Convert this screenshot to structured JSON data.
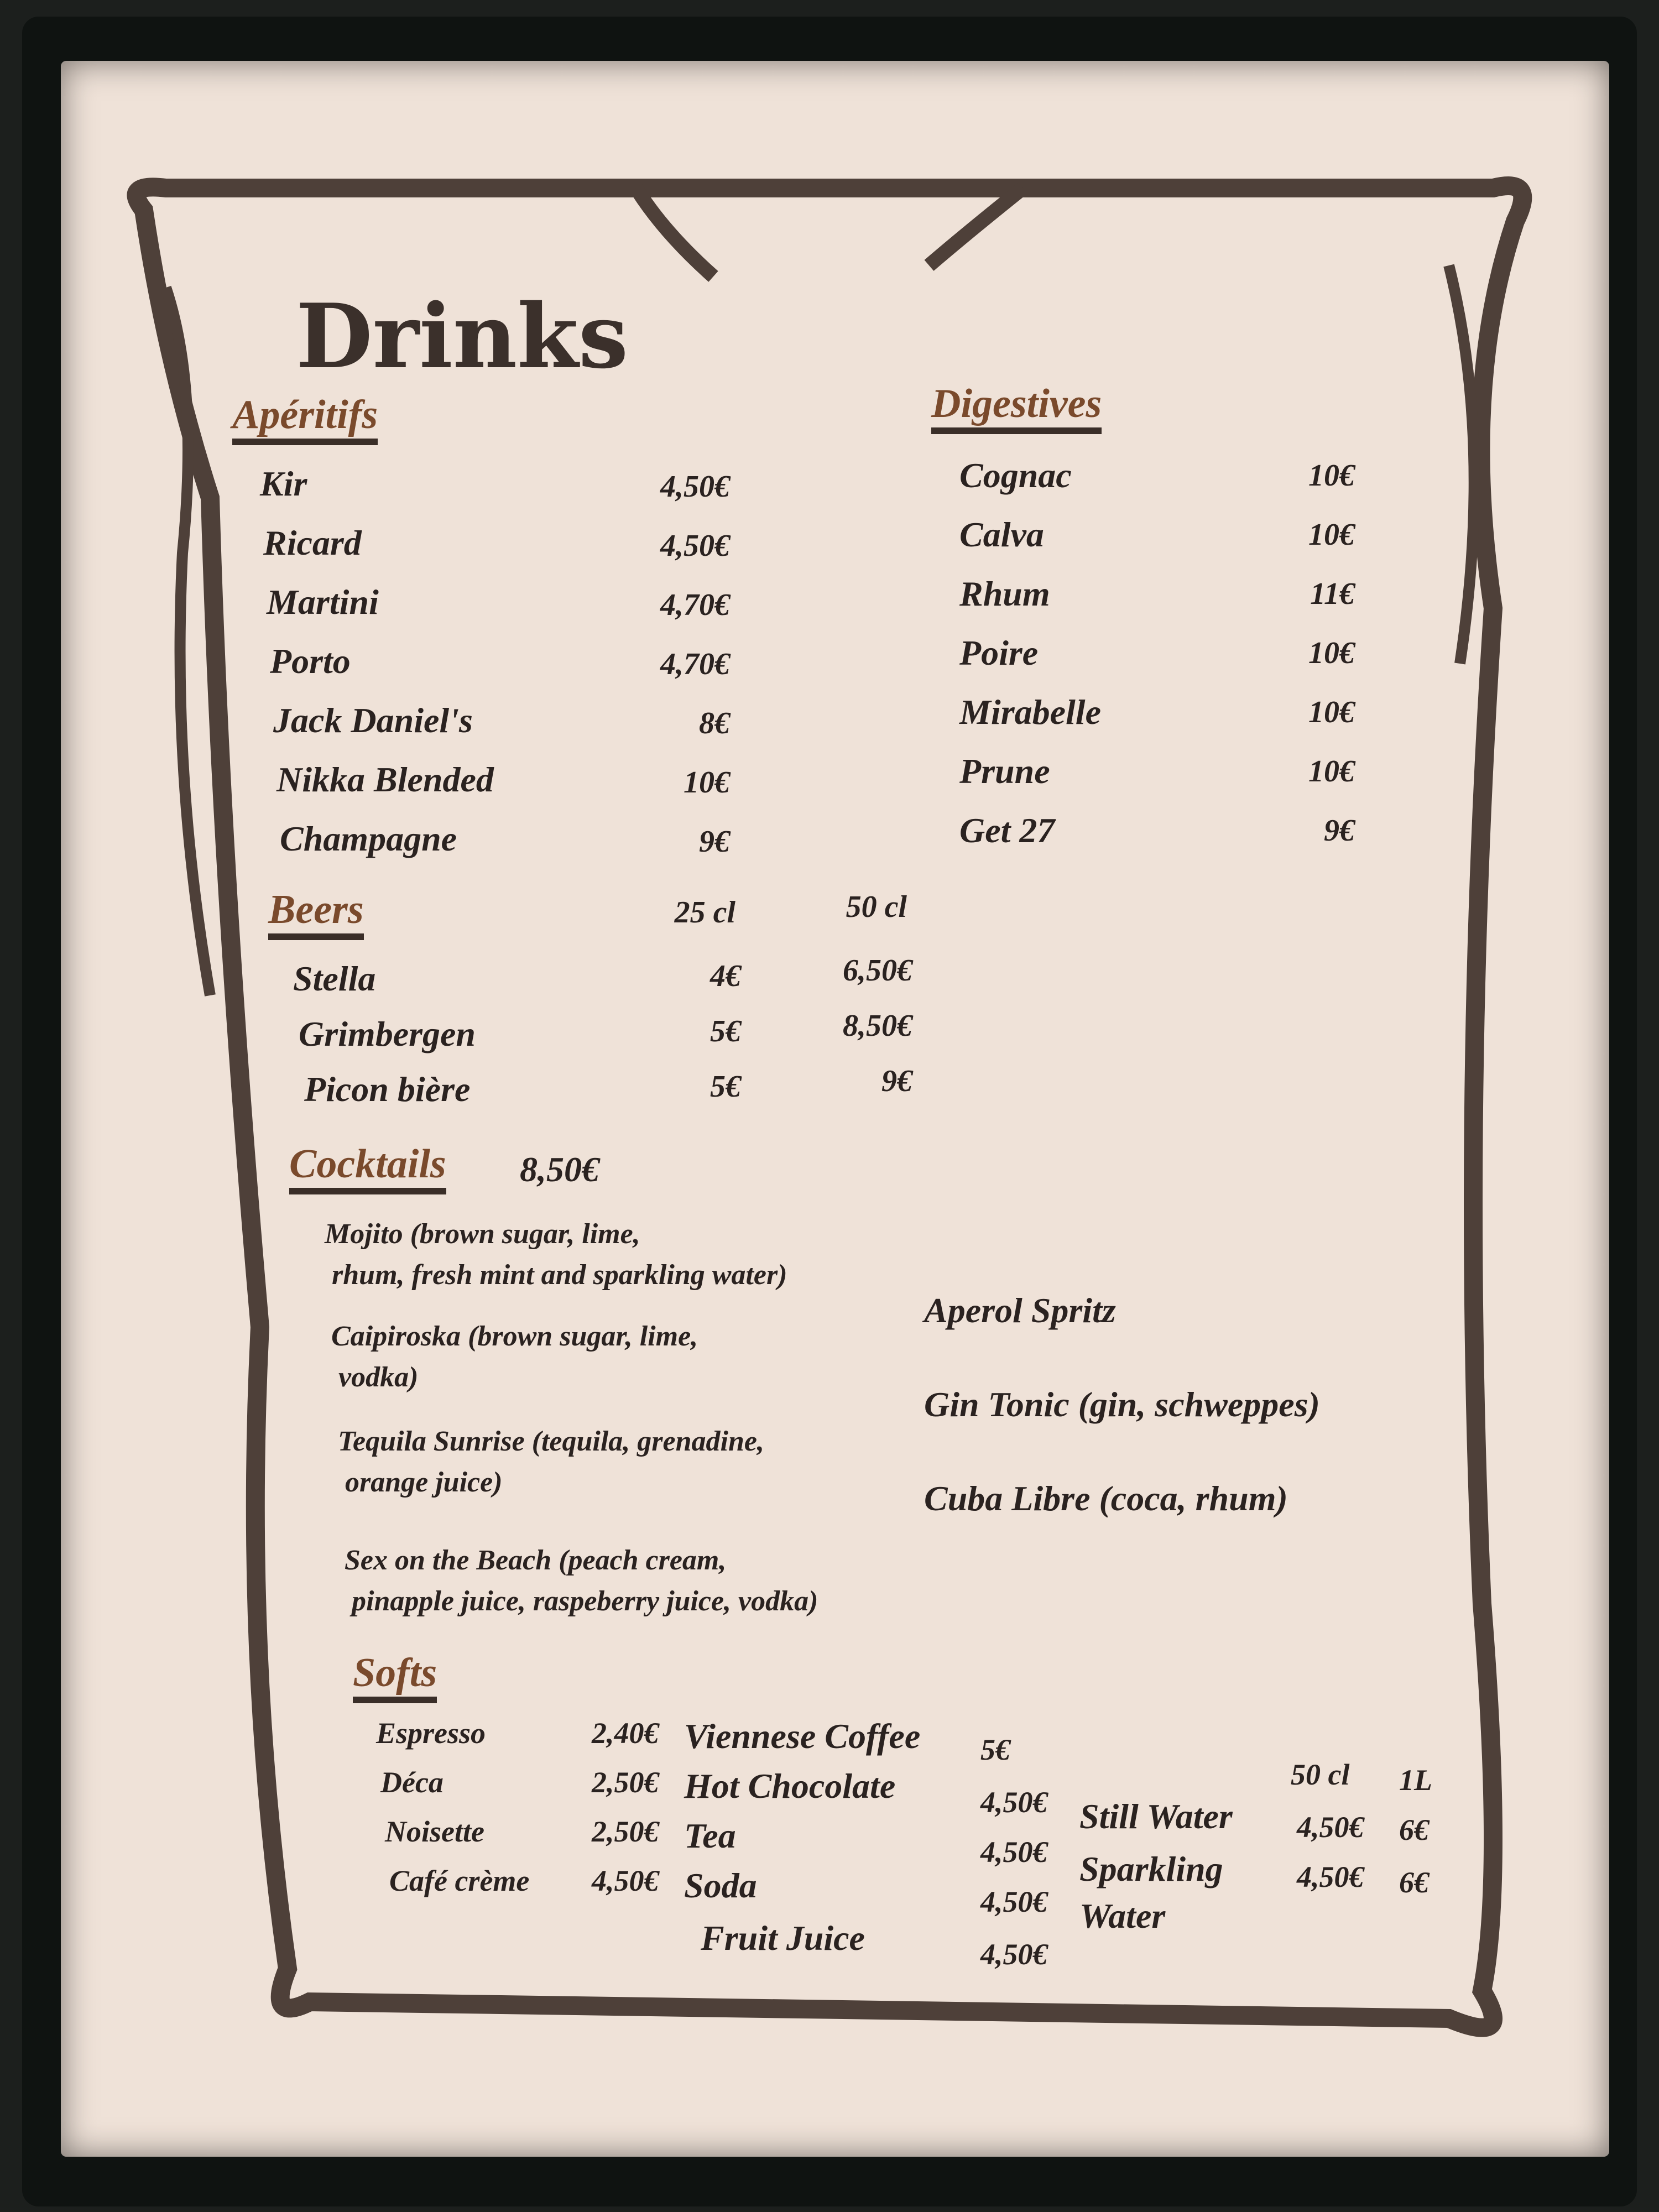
{
  "title": "Drinks",
  "aperitifs": {
    "heading": "Apéritifs",
    "items": [
      {
        "name": "Kir",
        "price": "4,50€"
      },
      {
        "name": "Ricard",
        "price": "4,50€"
      },
      {
        "name": "Martini",
        "price": "4,70€"
      },
      {
        "name": "Porto",
        "price": "4,70€"
      },
      {
        "name": "Jack Daniel's",
        "price": "8€"
      },
      {
        "name": "Nikka Blended",
        "price": "10€"
      },
      {
        "name": "Champagne",
        "price": "9€"
      }
    ]
  },
  "digestives": {
    "heading": "Digestives",
    "items": [
      {
        "name": "Cognac",
        "price": "10€"
      },
      {
        "name": "Calva",
        "price": "10€"
      },
      {
        "name": "Rhum",
        "price": "11€"
      },
      {
        "name": "Poire",
        "price": "10€"
      },
      {
        "name": "Mirabelle",
        "price": "10€"
      },
      {
        "name": "Prune",
        "price": "10€"
      },
      {
        "name": "Get 27",
        "price": "9€"
      }
    ]
  },
  "beers": {
    "heading": "Beers",
    "sizes": [
      "25 cl",
      "50 cl"
    ],
    "items": [
      {
        "name": "Stella",
        "p1": "4€",
        "p2": "6,50€"
      },
      {
        "name": "Grimbergen",
        "p1": "5€",
        "p2": "8,50€"
      },
      {
        "name": "Picon bière",
        "p1": "5€",
        "p2": "9€"
      }
    ]
  },
  "cocktails": {
    "heading": "Cocktails",
    "price": "8,50€",
    "left": [
      {
        "l1": "Mojito (brown sugar, lime,",
        "l2": "rhum, fresh mint and sparkling water)"
      },
      {
        "l1": "Caipiroska (brown sugar, lime,",
        "l2": "vodka)"
      },
      {
        "l1": "Tequila Sunrise (tequila, grenadine,",
        "l2": "orange juice)"
      },
      {
        "l1": "Sex on the Beach (peach cream,",
        "l2": "pinapple juice, raspeberry juice, vodka)"
      }
    ],
    "right": [
      "Aperol Spritz",
      "Gin Tonic (gin, schweppes)",
      "Cuba Libre (coca, rhum)"
    ]
  },
  "softs": {
    "heading": "Softs",
    "col1": [
      {
        "name": "Espresso",
        "price": "2,40€"
      },
      {
        "name": "Déca",
        "price": "2,50€"
      },
      {
        "name": "Noisette",
        "price": "2,50€"
      },
      {
        "name": "Café crème",
        "price": "4,50€"
      }
    ],
    "col2": [
      {
        "name": "Viennese Coffee",
        "price": "5€"
      },
      {
        "name": "Hot Chocolate",
        "price": "4,50€"
      },
      {
        "name": "Tea",
        "price": "4,50€"
      },
      {
        "name": "Soda",
        "price": "4,50€"
      },
      {
        "name": "Fruit Juice",
        "price": "4,50€"
      }
    ],
    "water": {
      "sizes": [
        "50 cl",
        "1L"
      ],
      "items": [
        {
          "name": "Still Water",
          "p1": "4,50€",
          "p2": "6€"
        },
        {
          "name": "Sparkling",
          "name2": "Water",
          "p1": "4,50€",
          "p2": "6€"
        }
      ]
    }
  },
  "colors": {
    "heading": "#7a4a2c",
    "frame": "#4e4039",
    "paper": "#efe2d8",
    "ink": "#2a2220"
  }
}
